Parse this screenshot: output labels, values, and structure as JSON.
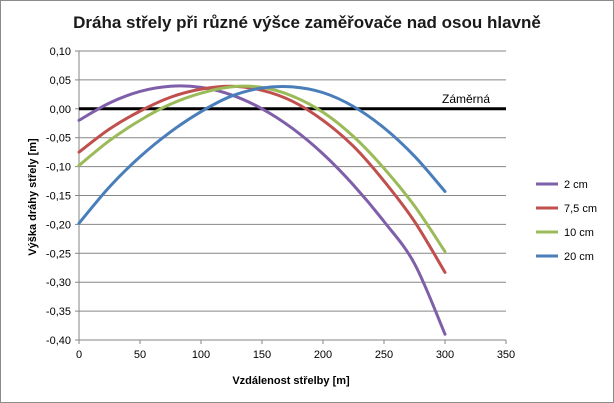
{
  "chart_data": {
    "type": "line",
    "title": "Dráha střely při různé výšce zaměřovače nad osou hlavně",
    "xlabel": "Vzdálenost střelby [m]",
    "ylabel": "Výška dráhy střely [m]",
    "xlim": [
      0,
      350
    ],
    "ylim": [
      -0.4,
      0.1
    ],
    "x_ticks": [
      0,
      50,
      100,
      150,
      200,
      250,
      300,
      350
    ],
    "x_tick_labels": [
      "0",
      "50",
      "100",
      "150",
      "200",
      "250",
      "300",
      "350"
    ],
    "y_ticks": [
      0.1,
      0.05,
      0.0,
      -0.05,
      -0.1,
      -0.15,
      -0.2,
      -0.25,
      -0.3,
      -0.35,
      -0.4
    ],
    "y_tick_labels": [
      "0,10",
      "0,05",
      "0,00",
      "-0,05",
      "-0,10",
      "-0,15",
      "-0,20",
      "-0,25",
      "-0,30",
      "-0,35",
      "-0,40"
    ],
    "grid": "horizontal",
    "legend_position": "right",
    "annotation": {
      "text": "Záměrná",
      "y": 0.0
    },
    "series": [
      {
        "name": "2 cm",
        "color": "#7f5fa9",
        "x": [
          0,
          25,
          50,
          75,
          100,
          125,
          150,
          175,
          200,
          225,
          250,
          275,
          300
        ],
        "y": [
          -0.02,
          0.01,
          0.03,
          0.039,
          0.037,
          0.024,
          0.0,
          -0.034,
          -0.078,
          -0.132,
          -0.195,
          -0.268,
          -0.39
        ]
      },
      {
        "name": "7,5 cm",
        "color": "#c0504d",
        "x": [
          0,
          25,
          50,
          75,
          100,
          125,
          150,
          175,
          200,
          225,
          250,
          275,
          300
        ],
        "y": [
          -0.075,
          -0.035,
          -0.004,
          0.02,
          0.034,
          0.039,
          0.032,
          0.013,
          -0.02,
          -0.065,
          -0.125,
          -0.195,
          -0.283
        ]
      },
      {
        "name": "10 cm",
        "color": "#9bbb59",
        "x": [
          0,
          25,
          50,
          75,
          100,
          125,
          150,
          175,
          200,
          225,
          250,
          275,
          300
        ],
        "y": [
          -0.098,
          -0.055,
          -0.02,
          0.008,
          0.027,
          0.038,
          0.037,
          0.022,
          -0.006,
          -0.048,
          -0.103,
          -0.168,
          -0.247
        ]
      },
      {
        "name": "20 cm",
        "color": "#4a7ebb",
        "x": [
          0,
          25,
          50,
          75,
          100,
          125,
          150,
          175,
          200,
          225,
          250,
          275,
          300
        ],
        "y": [
          -0.198,
          -0.135,
          -0.083,
          -0.04,
          -0.005,
          0.022,
          0.036,
          0.038,
          0.028,
          0.004,
          -0.033,
          -0.082,
          -0.143
        ]
      }
    ]
  }
}
